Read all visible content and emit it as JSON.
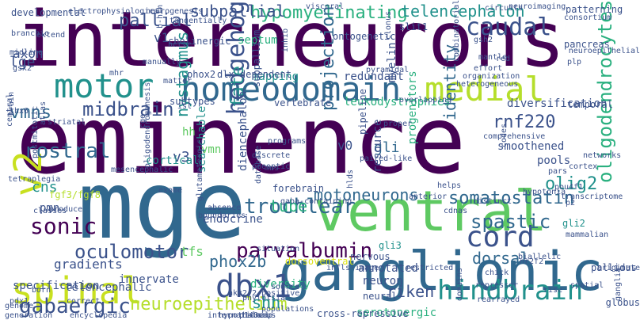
{
  "palette": {
    "background": "#ffffff",
    "dark_purple": "#440154",
    "indigo": "#3b528b",
    "blue": "#31688e",
    "teal": "#21918c",
    "green_teal": "#2ab07f",
    "green": "#5ec962",
    "lime": "#b5de2b",
    "yellow": "#dde318"
  },
  "words": [
    {
      "text": "interneurons",
      "color": "#440154"
    },
    {
      "text": "eminence",
      "color": "#440154"
    },
    {
      "text": "mge",
      "color": "#31688e"
    },
    {
      "text": "ventral",
      "color": "#5ec962"
    },
    {
      "text": "ganglionic",
      "color": "#31688e"
    },
    {
      "text": "homeodomain",
      "color": "#31688e"
    },
    {
      "text": "medial",
      "color": "#b5de2b"
    },
    {
      "text": "motor",
      "color": "#21918c"
    },
    {
      "text": "spinal",
      "color": "#c8e020"
    },
    {
      "text": "v2",
      "color": "#c8e020"
    },
    {
      "text": "hindbrain",
      "color": "#21918c"
    },
    {
      "text": "dbx1",
      "color": "#3b528b"
    },
    {
      "text": "parvalbumin",
      "color": "#440154"
    },
    {
      "text": "cord",
      "color": "#3b528b"
    },
    {
      "text": "caudal",
      "color": "#3b528b"
    },
    {
      "text": "hypomyelinating",
      "color": "#2ab07f"
    },
    {
      "text": "subpallial",
      "color": "#3b528b"
    },
    {
      "text": "pallial",
      "color": "#3b528b"
    },
    {
      "text": "telencephalon",
      "color": "#21918c"
    },
    {
      "text": "midbrain",
      "color": "#3b528b"
    },
    {
      "text": "hedgehog",
      "color": "#3b528b"
    },
    {
      "text": "fate",
      "color": "#21918c"
    },
    {
      "text": "nystagmus",
      "color": "#21918c"
    },
    {
      "text": "rostral",
      "color": "#31688e"
    },
    {
      "text": "trochlear",
      "color": "#31688e"
    },
    {
      "text": "oculomotor",
      "color": "#3b528b"
    },
    {
      "text": "sonic",
      "color": "#440154"
    },
    {
      "text": "gabaergic",
      "color": "#3b528b"
    },
    {
      "text": "phox2b",
      "color": "#31688e"
    },
    {
      "text": "neuroepithelium",
      "color": "#b5de2b"
    },
    {
      "text": "shh",
      "color": "#21918c"
    },
    {
      "text": "riken",
      "color": "#3b528b"
    },
    {
      "text": "dorsal",
      "color": "#31688e"
    },
    {
      "text": "spastic",
      "color": "#31688e"
    },
    {
      "text": "olig2",
      "color": "#21918c"
    },
    {
      "text": "oligodendrocytes",
      "color": "#2ab07f"
    },
    {
      "text": "rnf220",
      "color": "#3b528b"
    },
    {
      "text": "identity",
      "color": "#31688e"
    },
    {
      "text": "projection",
      "color": "#31688e"
    },
    {
      "text": "motoneurons",
      "color": "#31688e"
    },
    {
      "text": "somatostatin",
      "color": "#31688e"
    },
    {
      "text": "tube",
      "color": "#2ab07f"
    },
    {
      "text": "vmns",
      "color": "#31688e"
    },
    {
      "text": "cns",
      "color": "#21918c"
    },
    {
      "text": "lge",
      "color": "#3b528b"
    },
    {
      "text": "v3",
      "color": "#3b528b"
    },
    {
      "text": "v1",
      "color": "#3b528b"
    },
    {
      "text": "v0",
      "color": "#3b528b"
    },
    {
      "text": "pmn",
      "color": "#3b528b"
    },
    {
      "text": "axon",
      "color": "#3b528b"
    },
    {
      "text": "tfs",
      "color": "#5ec962"
    },
    {
      "text": "hh",
      "color": "#5ec962"
    },
    {
      "text": "vmn",
      "color": "#5ec962"
    },
    {
      "text": "gli",
      "color": "#31688e"
    },
    {
      "text": "gli3",
      "color": "#21918c"
    },
    {
      "text": "gli2",
      "color": "#21918c"
    },
    {
      "text": "neuron",
      "color": "#3b528b"
    },
    {
      "text": "neural",
      "color": "#3b528b"
    },
    {
      "text": "nervous",
      "color": "#3b528b"
    },
    {
      "text": "diversity",
      "color": "#2ab07f"
    },
    {
      "text": "diencephalon",
      "color": "#3b528b"
    },
    {
      "text": "forebrain",
      "color": "#3b528b"
    },
    {
      "text": "cortical",
      "color": "#21918c"
    },
    {
      "text": "subtypes",
      "color": "#3b528b"
    },
    {
      "text": "vertebrate",
      "color": "#3b528b"
    },
    {
      "text": "mapping",
      "color": "#21918c"
    },
    {
      "text": "redundant",
      "color": "#3b528b"
    },
    {
      "text": "leukodystrophies",
      "color": "#2ab07f"
    },
    {
      "text": "diversification",
      "color": "#3b528b"
    },
    {
      "text": "smoothened",
      "color": "#3b528b"
    },
    {
      "text": "pools",
      "color": "#3b528b"
    },
    {
      "text": "progenitors",
      "color": "#2ab07f"
    },
    {
      "text": "resource",
      "color": "#3b528b"
    },
    {
      "text": "pipeline",
      "color": "#3b528b"
    },
    {
      "text": "gradients",
      "color": "#3b528b"
    },
    {
      "text": "specification",
      "color": "#3b528b"
    },
    {
      "text": "telencephalic",
      "color": "#3b528b"
    },
    {
      "text": "innervate",
      "color": "#3b528b"
    },
    {
      "text": "searchable",
      "color": "#21918c"
    },
    {
      "text": "fgf3/fgf8",
      "color": "#b5de2b"
    },
    {
      "text": "serotonergic",
      "color": "#2ab07f"
    },
    {
      "text": "annotated",
      "color": "#3b528b"
    },
    {
      "text": "dorsoventral",
      "color": "#dde318"
    },
    {
      "text": "endocrine",
      "color": "#3b528b"
    },
    {
      "text": "septum",
      "color": "#2ab07f"
    },
    {
      "text": "subpallium",
      "color": "#3b528b"
    },
    {
      "text": "phox2",
      "color": "#3b528b"
    },
    {
      "text": "slit1",
      "color": "#3b528b"
    },
    {
      "text": "myelin",
      "color": "#3b528b"
    },
    {
      "text": "patterning",
      "color": "#3b528b"
    },
    {
      "text": "pancreas",
      "color": "#3b528b"
    },
    {
      "text": "temporal",
      "color": "#3b528b"
    },
    {
      "text": "globus",
      "color": "#3b528b"
    },
    {
      "text": "pallidus",
      "color": "#3b528b"
    },
    {
      "text": "cholinergic",
      "color": "#3b528b"
    },
    {
      "text": "ontogenetic",
      "color": "#3b528b"
    },
    {
      "text": "dlx-dependent",
      "color": "#3b528b"
    },
    {
      "text": "pyramidal",
      "color": "#3b528b"
    },
    {
      "text": "overlapping",
      "color": "#3b528b"
    },
    {
      "text": "cross-repressive",
      "color": "#3b528b"
    },
    {
      "text": "postmitotic",
      "color": "#3b528b"
    },
    {
      "text": "developmental",
      "color": "#3b528b"
    },
    {
      "text": "electrophysiological",
      "color": "#3b528b"
    },
    {
      "text": "neurogenesis",
      "color": "#3b528b"
    },
    {
      "text": "tangentially",
      "color": "#3b528b"
    },
    {
      "text": "visceral",
      "color": "#3b528b"
    },
    {
      "text": "circuits",
      "color": "#3b528b"
    },
    {
      "text": "consortium",
      "color": "#3b528b"
    },
    {
      "text": "comprehensive",
      "color": "#3b528b"
    },
    {
      "text": "programs",
      "color": "#3b528b"
    },
    {
      "text": "proper",
      "color": "#3b528b"
    },
    {
      "text": "discrete",
      "color": "#3b528b"
    },
    {
      "text": "preoptic",
      "color": "#3b528b"
    },
    {
      "text": "paired-like",
      "color": "#3b528b"
    },
    {
      "text": "restricted",
      "color": "#3b528b"
    },
    {
      "text": "repressor",
      "color": "#3b528b"
    },
    {
      "text": "rearrayed",
      "color": "#3b528b"
    },
    {
      "text": "cdnas",
      "color": "#3b528b"
    },
    {
      "text": "biallelic",
      "color": "#3b528b"
    },
    {
      "text": "chick",
      "color": "#3b528b"
    },
    {
      "text": "rise",
      "color": "#3b528b"
    },
    {
      "text": "originate",
      "color": "#3b528b"
    },
    {
      "text": "ganglia",
      "color": "#3b528b"
    },
    {
      "text": "spatial",
      "color": "#3b528b"
    },
    {
      "text": "networks",
      "color": "#3b528b"
    },
    {
      "text": "cortex",
      "color": "#3b528b"
    },
    {
      "text": "pars",
      "color": "#3b528b"
    },
    {
      "text": "hypotonia",
      "color": "#3b528b"
    },
    {
      "text": "pou4f1",
      "color": "#3b528b"
    },
    {
      "text": "p2",
      "color": "#3b528b"
    },
    {
      "text": "transcriptome",
      "color": "#3b528b"
    },
    {
      "text": "mammalian",
      "color": "#3b528b"
    },
    {
      "text": "plp",
      "color": "#3b528b"
    },
    {
      "text": "gsh2",
      "color": "#3b528b"
    },
    {
      "text": "effort",
      "color": "#3b528b"
    },
    {
      "text": "combinatorial",
      "color": "#3b528b"
    },
    {
      "text": "neuroepithelial",
      "color": "#3b528b"
    },
    {
      "text": "organization",
      "color": "#3b528b"
    },
    {
      "text": "neuroimaging",
      "color": "#3b528b"
    },
    {
      "text": "mantle",
      "color": "#3b528b"
    },
    {
      "text": "red",
      "color": "#3b528b"
    },
    {
      "text": "helps",
      "color": "#3b528b"
    },
    {
      "text": "anterior",
      "color": "#3b528b"
    },
    {
      "text": "domains",
      "color": "#3b528b"
    },
    {
      "text": "nr2f2",
      "color": "#3b528b"
    },
    {
      "text": "hypothalamus",
      "color": "#3b528b"
    },
    {
      "text": "p140cap",
      "color": "#3b528b"
    },
    {
      "text": "populations",
      "color": "#3b528b"
    },
    {
      "text": "phylotsia",
      "color": "#3b528b"
    },
    {
      "text": "source",
      "color": "#3b528b"
    },
    {
      "text": "correct",
      "color": "#3b528b"
    },
    {
      "text": "encyclopedia",
      "color": "#3b528b"
    },
    {
      "text": "generation",
      "color": "#3b528b"
    },
    {
      "text": "genome",
      "color": "#3b528b"
    },
    {
      "text": "pdx1",
      "color": "#3b528b"
    },
    {
      "text": "international",
      "color": "#3b528b"
    },
    {
      "text": "born",
      "color": "#3b528b"
    },
    {
      "text": "produce",
      "color": "#3b528b"
    },
    {
      "text": "classes",
      "color": "#3b528b"
    },
    {
      "text": "tetraplegia",
      "color": "#3b528b"
    },
    {
      "text": "lhx6",
      "color": "#3b528b"
    },
    {
      "text": "brain",
      "color": "#3b528b"
    },
    {
      "text": "central",
      "color": "#3b528b"
    },
    {
      "text": "atlas",
      "color": "#3b528b"
    },
    {
      "text": "striatal",
      "color": "#3b528b"
    },
    {
      "text": "cge",
      "color": "#3b528b"
    },
    {
      "text": "mesencephalic",
      "color": "#3b528b"
    },
    {
      "text": "glutamatergic",
      "color": "#3b528b"
    },
    {
      "text": "exome",
      "color": "#3b528b"
    },
    {
      "text": "oligodendrogenesis",
      "color": "#3b528b"
    },
    {
      "text": "absence",
      "color": "#3b528b"
    },
    {
      "text": "boundaries",
      "color": "#3b528b"
    },
    {
      "text": "nkx2.2-positive",
      "color": "#3b528b"
    },
    {
      "text": "situation",
      "color": "#3b528b"
    },
    {
      "text": "infls-image",
      "color": "#3b528b"
    },
    {
      "text": "gaba-containing",
      "color": "#3b528b"
    },
    {
      "text": "hlds",
      "color": "#3b528b"
    },
    {
      "text": "distinct",
      "color": "#3b528b"
    },
    {
      "text": "codes",
      "color": "#3b528b"
    },
    {
      "text": "branchio",
      "color": "#3b528b"
    },
    {
      "text": "extend",
      "color": "#3b528b"
    },
    {
      "text": "gsx2",
      "color": "#3b528b"
    },
    {
      "text": "midline",
      "color": "#3b528b"
    },
    {
      "text": "mhr",
      "color": "#3b528b"
    },
    {
      "text": "manually",
      "color": "#3b528b"
    },
    {
      "text": "matter",
      "color": "#3b528b"
    },
    {
      "text": "isl",
      "color": "#3b528b"
    },
    {
      "text": "nerve",
      "color": "#3b528b"
    },
    {
      "text": "b-hlh",
      "color": "#3b528b"
    },
    {
      "text": "inhib",
      "color": "#3b528b"
    },
    {
      "text": "heterogeneous",
      "color": "#3b528b"
    },
    {
      "text": "clonus",
      "color": "#3b528b"
    },
    {
      "text": "database",
      "color": "#3b528b"
    },
    {
      "text": "mns",
      "color": "#3b528b"
    }
  ]
}
